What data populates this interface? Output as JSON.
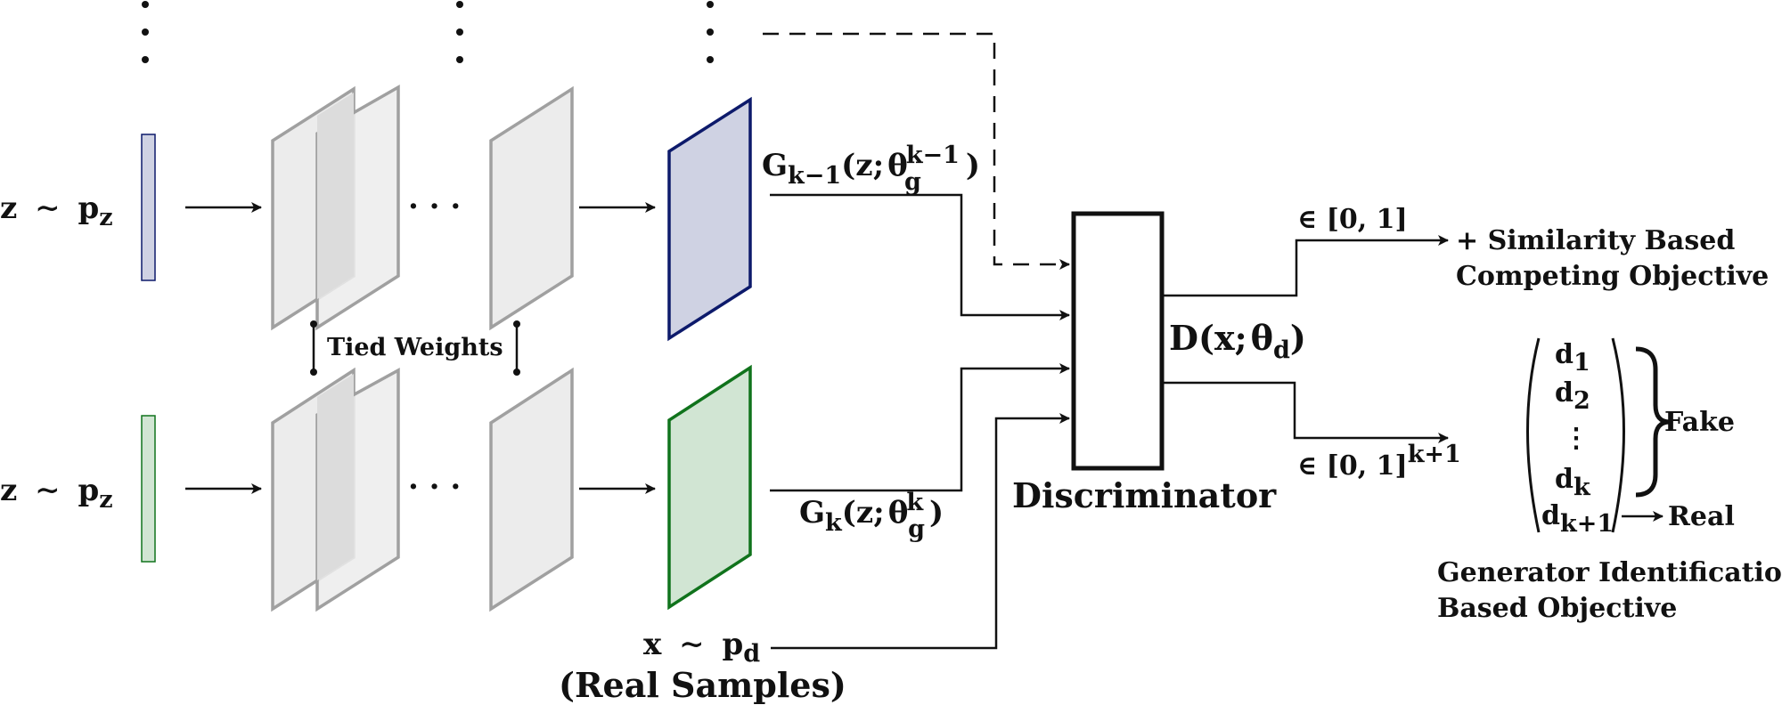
{
  "colors": {
    "generator_prev_fill": "#cfd2e3",
    "generator_prev_stroke": "#0d1a6b",
    "generator_cur_fill": "#d1e5d3",
    "generator_cur_stroke": "#10731c",
    "layer_fill": "#ececec",
    "layer_overlap_fill": "#dcdcdc",
    "layer_stroke": "#a0a0a0",
    "line": "#111111"
  },
  "top_branch": {
    "input": {
      "var": "z",
      "dist": "p",
      "dist_sub": "z"
    },
    "output": {
      "name": "G",
      "sub": "k−1",
      "arg": "z;",
      "theta": "θ",
      "theta_sub": "g",
      "theta_sup": "k−1",
      "close": ")",
      "open": "("
    }
  },
  "bottom_branch": {
    "input": {
      "var": "z",
      "dist": "p",
      "dist_sub": "z"
    },
    "output": {
      "name": "G",
      "sub": "k",
      "arg": "z;",
      "theta": "θ",
      "theta_sub": "g",
      "theta_sup": "k",
      "close": ")",
      "open": "("
    }
  },
  "sim_sym": "∼",
  "ellipsis": "· · ·",
  "tied_weights": "Tied Weights",
  "real": {
    "var": "x",
    "dist": "p",
    "dist_sub": "d",
    "caption": "(Real Samples)"
  },
  "discriminator": {
    "name": "Discriminator",
    "func": {
      "name": "D",
      "open": "(",
      "arg": "x;",
      "theta": "θ",
      "theta_sub": "d",
      "close": ")"
    }
  },
  "out_top": {
    "range": "∈ [0, 1]",
    "objective_line1": "+ Similarity Based",
    "objective_line2": "Competing Objective"
  },
  "out_bottom": {
    "range": "∈ [0, 1]",
    "range_sup": "k+1"
  },
  "vector": {
    "entries": [
      {
        "base": "d",
        "sub": "1"
      },
      {
        "base": "d",
        "sub": "2"
      },
      {
        "base": "",
        "sub": "",
        "dots": "⋮"
      },
      {
        "base": "d",
        "sub": "k"
      },
      {
        "base": "d",
        "sub": "k+1"
      }
    ],
    "fake_label": "Fake",
    "real_label": "Real"
  },
  "gen_id": {
    "line1": "Generator Identification",
    "line2": "Based Objective"
  }
}
